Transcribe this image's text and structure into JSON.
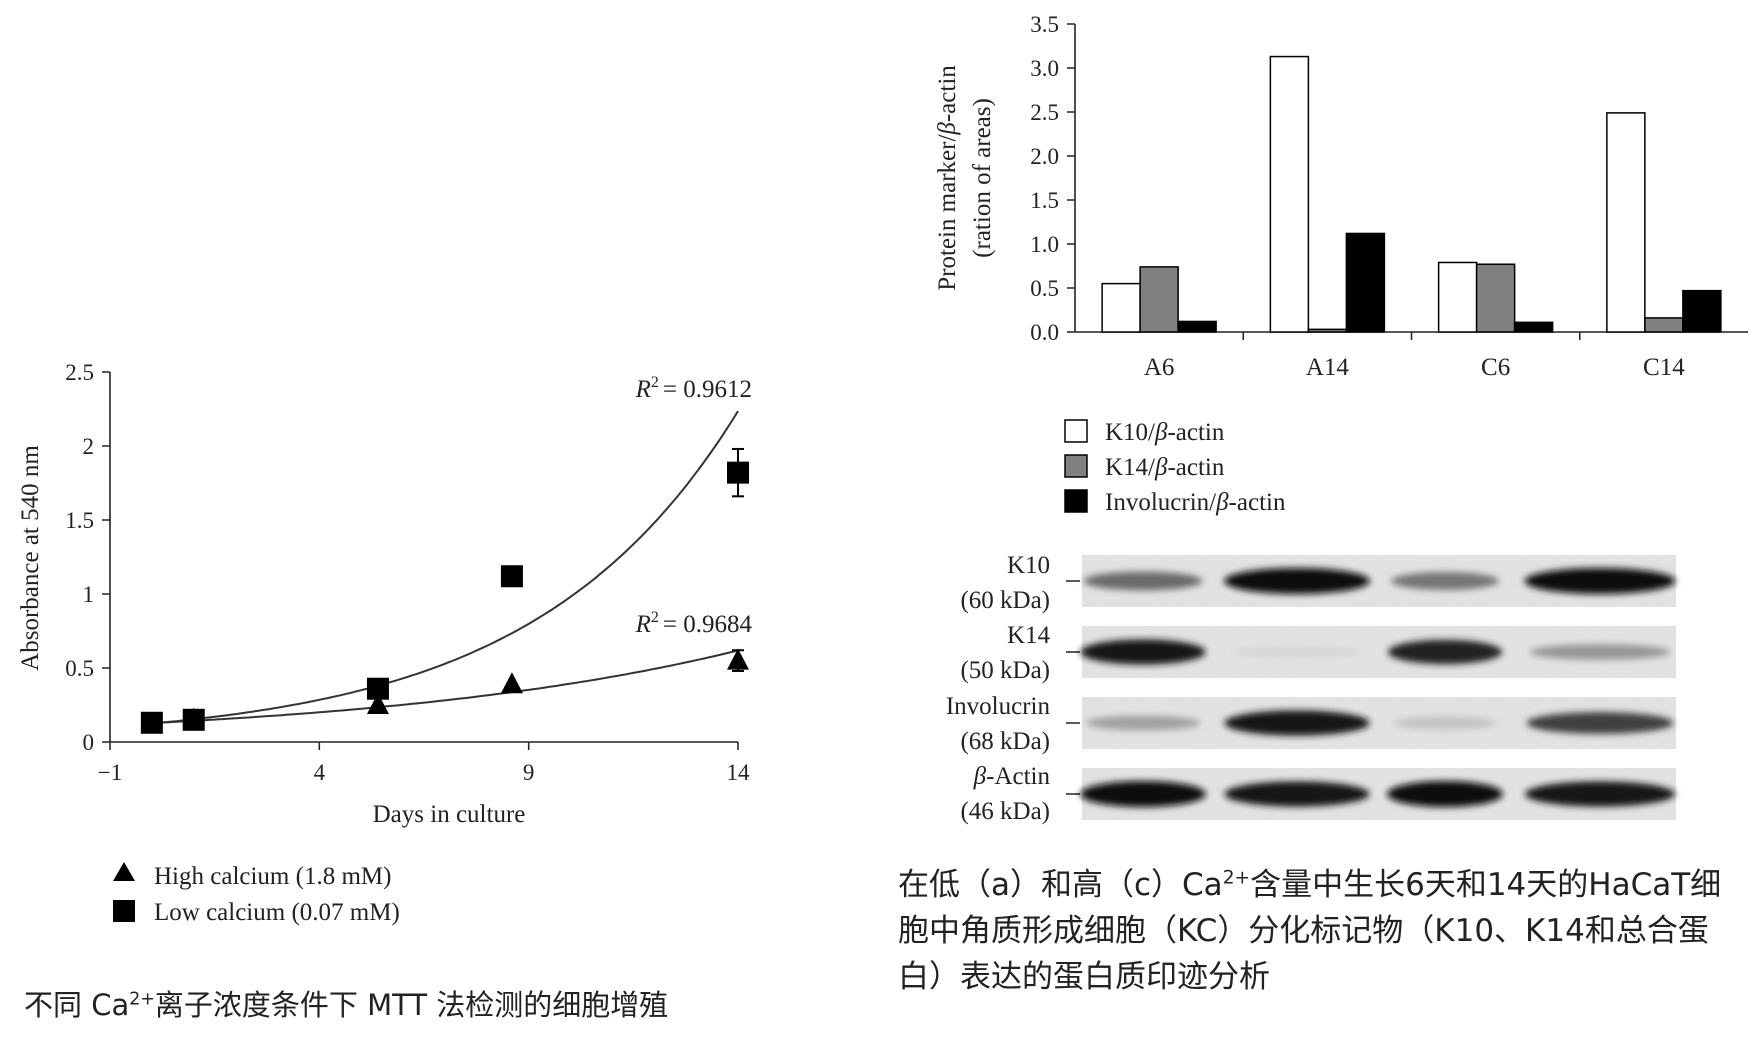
{
  "chart_data": [
    {
      "type": "scatter",
      "x_axis_label": "Days in culture",
      "y_axis_label": "Absorbance at 540 nm",
      "xlim": [
        -1,
        14
      ],
      "ylim": [
        0,
        2.5
      ],
      "x_ticks": [
        -1,
        4,
        9,
        14
      ],
      "x_tick_labels": [
        "−1",
        "4",
        "9",
        "14"
      ],
      "y_ticks": [
        0,
        0.5,
        1,
        1.5,
        2,
        2.5
      ],
      "y_tick_labels": [
        "0",
        "0.5",
        "1",
        "1.5",
        "2",
        "2.5"
      ],
      "series": [
        {
          "name": "High calcium (1.8 mM)",
          "marker": "triangle",
          "x": [
            0,
            1,
            5.4,
            8.6,
            14
          ],
          "y": [
            0.12,
            0.15,
            0.25,
            0.39,
            0.55
          ],
          "error": [
            0,
            0,
            0,
            0,
            0.07
          ],
          "fit": {
            "type": "exponential",
            "a": 0.128,
            "b": 0.1125
          },
          "r2_text": "= 0.9684",
          "r2_value": 0.9684
        },
        {
          "name": "Low calcium (0.07 mM)",
          "marker": "square",
          "x": [
            0,
            1,
            5.4,
            8.6,
            14
          ],
          "y": [
            0.13,
            0.15,
            0.36,
            1.12,
            1.82
          ],
          "error": [
            0,
            0,
            0,
            0,
            0.16
          ],
          "fit": {
            "type": "exponential",
            "a": 0.125,
            "b": 0.206
          },
          "r2_text": "= 0.9612",
          "r2_value": 0.9612
        }
      ],
      "r2_prefix": "R",
      "r2_sup": "2"
    },
    {
      "type": "bar",
      "y_axis_label_line1_prefix": "Protein marker/",
      "y_axis_label_line1_italic": "β",
      "y_axis_label_line1_suffix": "-actin",
      "y_axis_label_line2": "(ration of areas)",
      "ylim": [
        0,
        3.5
      ],
      "y_ticks": [
        0,
        0.5,
        1,
        1.5,
        2,
        2.5,
        3,
        3.5
      ],
      "y_tick_labels": [
        "0.0",
        "0.5",
        "1.0",
        "1.5",
        "2.0",
        "2.5",
        "3.0",
        "3.5"
      ],
      "categories": [
        "A6",
        "A14",
        "C6",
        "C14"
      ],
      "series": [
        {
          "name_prefix": "K10/",
          "name_italic": "β",
          "name_suffix": "-actin",
          "color": "#ffffff",
          "values": [
            0.55,
            3.13,
            0.79,
            2.49
          ]
        },
        {
          "name_prefix": "K14/",
          "name_italic": "β",
          "name_suffix": "-actin",
          "color": "#808080",
          "values": [
            0.74,
            0.03,
            0.77,
            0.16
          ]
        },
        {
          "name_prefix": "Involucrin/",
          "name_italic": "β",
          "name_suffix": "-actin",
          "color": "#000000",
          "values": [
            0.12,
            1.12,
            0.11,
            0.47
          ]
        }
      ]
    }
  ],
  "western_blot": {
    "rows": [
      {
        "name": "K10",
        "size": "(60 kDa)",
        "intensity": [
          0.55,
          1.0,
          0.5,
          1.0
        ]
      },
      {
        "name": "K14",
        "size": "(50 kDa)",
        "intensity": [
          0.95,
          0.05,
          0.9,
          0.35
        ]
      },
      {
        "name": "Involucrin",
        "size": "(68 kDa)",
        "intensity": [
          0.3,
          0.95,
          0.15,
          0.75
        ]
      },
      {
        "name": "Actin",
        "name_italic": "β-",
        "size": "(46 kDa)",
        "intensity": [
          1.0,
          0.95,
          1.0,
          0.95
        ]
      }
    ]
  },
  "captions": {
    "left_pre": "不同 Ca",
    "left_sup": "2+",
    "left_post": "离子浓度条件下 MTT 法检测的细胞增殖",
    "right_pre": "在低（a）和高（c）Ca",
    "right_sup": "2+",
    "right_post": "含量中生长6天和14天的HaCaT细胞中角质形成细胞（KC）分化标记物（K10、K14和总合蛋白）表达的蛋白质印迹分析"
  }
}
